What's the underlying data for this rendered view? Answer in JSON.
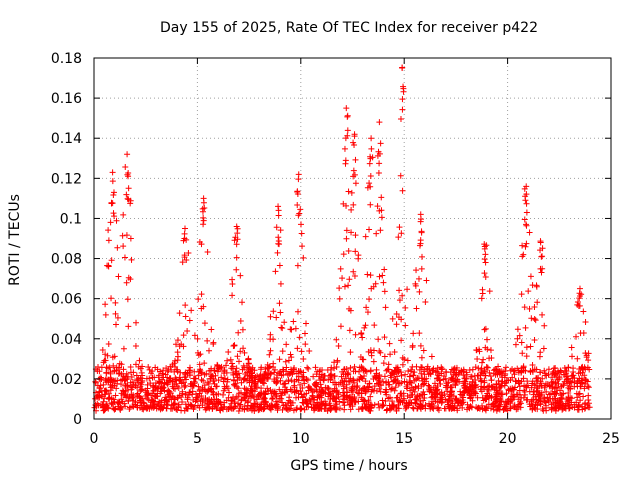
{
  "chart_data": {
    "type": "scatter",
    "title": "Day 155 of 2025, Rate Of TEC Index for receiver p422",
    "xlabel": "GPS time / hours",
    "ylabel": "ROTI / TECUs",
    "xlim": [
      0,
      25
    ],
    "ylim": [
      0,
      0.18
    ],
    "x_ticks": [
      "0",
      "5",
      "10",
      "15",
      "20",
      "25"
    ],
    "y_ticks": [
      "0",
      "0.02",
      "0.04",
      "0.06",
      "0.08",
      "0.1",
      "0.12",
      "0.14",
      "0.16",
      "0.18"
    ],
    "grid": true,
    "marker": "+",
    "color": "#ff0000",
    "data_extent_x": [
      0,
      24
    ],
    "peaks": [
      {
        "x": 0.9,
        "y": 0.123
      },
      {
        "x": 1.6,
        "y": 0.132
      },
      {
        "x": 4.4,
        "y": 0.095
      },
      {
        "x": 5.3,
        "y": 0.11
      },
      {
        "x": 6.9,
        "y": 0.096
      },
      {
        "x": 8.9,
        "y": 0.106
      },
      {
        "x": 9.9,
        "y": 0.122
      },
      {
        "x": 12.2,
        "y": 0.155
      },
      {
        "x": 12.6,
        "y": 0.142
      },
      {
        "x": 13.4,
        "y": 0.14
      },
      {
        "x": 13.8,
        "y": 0.148
      },
      {
        "x": 14.9,
        "y": 0.175
      },
      {
        "x": 15.8,
        "y": 0.102
      },
      {
        "x": 18.9,
        "y": 0.086
      },
      {
        "x": 20.9,
        "y": 0.116
      },
      {
        "x": 21.6,
        "y": 0.088
      },
      {
        "x": 23.5,
        "y": 0.065
      }
    ]
  }
}
